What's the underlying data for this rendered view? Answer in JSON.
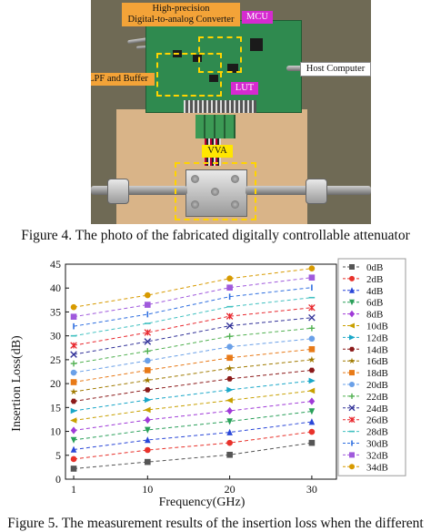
{
  "figure4": {
    "labels": {
      "dac": "High-precision\nDigital-to-analog Converter",
      "dac_line1": "High-precision",
      "dac_line2": "Digital-to-analog Converter",
      "mcu": "MCU",
      "host": "Host Computer",
      "lpf": "LPF and Buffer",
      "lut": "LUT",
      "vva": "VVA"
    },
    "caption": "Figure 4.  The photo of the fabricated digitally controllable attenuator"
  },
  "figure5": {
    "caption_partial": "Figure 5.  The measurement results of the insertion loss when the different"
  },
  "colors": {
    "board": "#2f8a4f",
    "label_orange": "#f3a338",
    "label_magenta": "#d62ad0",
    "label_yellow": "#ffe600"
  },
  "chart_data": {
    "type": "line",
    "xlabel": "Frequency(GHz)",
    "ylabel": "Insertion Loss(dB)",
    "x": [
      1,
      10,
      20,
      30
    ],
    "xticks": [
      1,
      10,
      20,
      30
    ],
    "ylim": [
      0,
      45
    ],
    "yticks": [
      0,
      5,
      10,
      15,
      20,
      25,
      30,
      35,
      40,
      45
    ],
    "line_style": "dashed",
    "legend_position": "right",
    "series": [
      {
        "name": "0dB",
        "color": "#555555",
        "marker": "square",
        "values": [
          2.2,
          3.6,
          5.1,
          7.6
        ]
      },
      {
        "name": "2dB",
        "color": "#e8322b",
        "marker": "circle",
        "values": [
          4.2,
          6.1,
          7.6,
          9.9
        ]
      },
      {
        "name": "4dB",
        "color": "#2a47d8",
        "marker": "triangle-up",
        "values": [
          6.2,
          8.2,
          9.8,
          12.0
        ]
      },
      {
        "name": "6dB",
        "color": "#2aa05a",
        "marker": "triangle-down",
        "values": [
          8.2,
          10.3,
          12.1,
          14.2
        ]
      },
      {
        "name": "8dB",
        "color": "#a03ad8",
        "marker": "diamond",
        "values": [
          10.2,
          12.4,
          14.3,
          16.3
        ]
      },
      {
        "name": "10dB",
        "color": "#c8a000",
        "marker": "triangle-left",
        "values": [
          12.3,
          14.5,
          16.5,
          18.5
        ]
      },
      {
        "name": "12dB",
        "color": "#1aa7c8",
        "marker": "triangle-right",
        "values": [
          14.3,
          16.6,
          18.7,
          20.6
        ]
      },
      {
        "name": "14dB",
        "color": "#8b1a1a",
        "marker": "hexagon",
        "values": [
          16.3,
          18.7,
          21.0,
          22.8
        ]
      },
      {
        "name": "16dB",
        "color": "#a07a00",
        "marker": "star",
        "values": [
          18.3,
          20.7,
          23.2,
          25.0
        ]
      },
      {
        "name": "18dB",
        "color": "#e87a18",
        "marker": "square",
        "values": [
          20.3,
          22.8,
          25.4,
          27.2
        ]
      },
      {
        "name": "20dB",
        "color": "#6aa0e8",
        "marker": "circle",
        "values": [
          22.3,
          24.8,
          27.7,
          29.4
        ]
      },
      {
        "name": "22dB",
        "color": "#50b050",
        "marker": "plus",
        "values": [
          24.2,
          26.8,
          29.9,
          31.6
        ]
      },
      {
        "name": "24dB",
        "color": "#333399",
        "marker": "x",
        "values": [
          26.1,
          28.8,
          32.1,
          33.8
        ]
      },
      {
        "name": "26dB",
        "color": "#e8282e",
        "marker": "asterisk",
        "values": [
          28.0,
          30.7,
          34.1,
          35.9
        ]
      },
      {
        "name": "28dB",
        "color": "#40c0c0",
        "marker": "dash",
        "values": [
          30.0,
          32.6,
          36.1,
          38.0
        ]
      },
      {
        "name": "30dB",
        "color": "#2f6fe0",
        "marker": "vline",
        "values": [
          32.0,
          34.5,
          38.2,
          40.1
        ]
      },
      {
        "name": "32dB",
        "color": "#a05adc",
        "marker": "square",
        "values": [
          34.0,
          36.5,
          40.1,
          42.2
        ]
      },
      {
        "name": "34dB",
        "color": "#d79a00",
        "marker": "circle",
        "values": [
          36.0,
          38.5,
          42.0,
          44.1
        ]
      }
    ]
  }
}
